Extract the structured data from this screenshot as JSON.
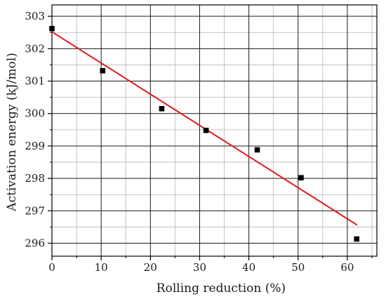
{
  "chart_data": {
    "type": "scatter",
    "title": "",
    "xlabel": "Rolling reduction (%)",
    "ylabel": "Activation energy (kJ/mol)",
    "xlim": [
      0,
      66
    ],
    "ylim": [
      295.6,
      303.35
    ],
    "x_ticks": [
      0,
      10,
      20,
      30,
      40,
      50,
      60
    ],
    "y_ticks": [
      296,
      297,
      298,
      299,
      300,
      301,
      302,
      303
    ],
    "x_minor_step": 5,
    "y_minor_step": 0.5,
    "grid": true,
    "legend": "none",
    "series": [
      {
        "type": "scatter",
        "color": "#000000",
        "marker": "square",
        "points": [
          {
            "x": 0,
            "y": 302.62
          },
          {
            "x": 10.3,
            "y": 301.32
          },
          {
            "x": 22.3,
            "y": 300.15
          },
          {
            "x": 31.3,
            "y": 299.48
          },
          {
            "x": 41.7,
            "y": 298.88
          },
          {
            "x": 50.6,
            "y": 298.02
          },
          {
            "x": 61.9,
            "y": 296.13
          }
        ]
      },
      {
        "type": "line",
        "color": "#e31a1c",
        "fit": "linear",
        "points": [
          {
            "x": 0,
            "y": 302.52
          },
          {
            "x": 62,
            "y": 296.56
          }
        ]
      }
    ]
  }
}
